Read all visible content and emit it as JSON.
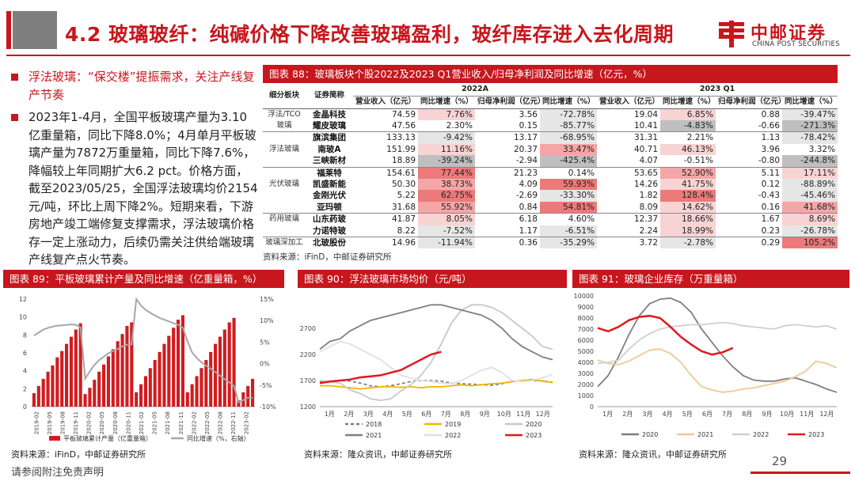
{
  "header": {
    "title": "4.2 玻璃玻纤：纯碱价格下降改善玻璃盈利，玻纤库存进入去化周期",
    "logo_cn": "中邮证券",
    "logo_en": "CHINA POST SECURITIES"
  },
  "bullets": [
    "浮法玻璃：“保交楼”提振需求，关注产线复产节奏",
    "2023年1-4月，全国平板玻璃产量为3.10亿重量箱，同比下降8.0%；4月单月平板玻璃产量为7872万重量箱，同比下降7.6%，降幅较上年同期扩大6.2 pct。价格方面，截至2023/05/25，全国浮法玻璃均价2154元/吨，环比上周下降2%。短期来看，下游房地产竣工端修复支撑需求，浮法玻璃价格存一定上涨动力，后续仍需关注供给端玻璃产线复产点火节奏。"
  ],
  "table88": {
    "title": "图表 88：玻璃板块个股2022及2023 Q1营业收入/归母净利润及同比增速（亿元，%）",
    "period_a": "2022A",
    "period_b": "2023 Q1",
    "col_group": "细分板块",
    "col_name": "证券简称",
    "col_rev": "营业收入（亿元）",
    "col_yoy": "同比增速（%）",
    "col_np": "归母净利润（亿元）",
    "source": "资料来源：iFinD，中邮证券研究所",
    "rows": [
      {
        "group": "浮法/TCO",
        "name": "金晶科技",
        "v": [
          "74.59",
          "7.76%",
          "3.56",
          "-72.78%",
          "19.04",
          "6.85%",
          "0.88",
          "-39.47%"
        ],
        "c": [
          "",
          "pos1",
          "",
          "neg1",
          "",
          "pos1",
          "",
          "neg1"
        ]
      },
      {
        "group": "玻璃",
        "name": "耀皮玻璃",
        "v": [
          "47.56",
          "2.30%",
          "0.15",
          "-85.77%",
          "10.41",
          "-4.83%",
          "-0.66",
          "-271.3%"
        ],
        "c": [
          "",
          "",
          "",
          "neg1",
          "",
          "neg2",
          "",
          "neg2"
        ]
      },
      {
        "group": "",
        "name": "旗滨集团",
        "v": [
          "133.13",
          "-9.42%",
          "13.17",
          "-68.95%",
          "31.31",
          "2.21%",
          "1.13",
          "-78.42%"
        ],
        "c": [
          "",
          "neg1",
          "",
          "neg1",
          "",
          "",
          "",
          "neg1"
        ]
      },
      {
        "group": "浮法玻璃",
        "name": "南玻A",
        "v": [
          "151.99",
          "11.16%",
          "20.37",
          "33.47%",
          "40.71",
          "46.13%",
          "3.96",
          "3.32%"
        ],
        "c": [
          "",
          "pos1",
          "",
          "pos2",
          "",
          "pos1",
          "",
          ""
        ]
      },
      {
        "group": "",
        "name": "三峡新材",
        "v": [
          "18.89",
          "-39.24%",
          "-2.94",
          "-425.4%",
          "4.07",
          "-0.51%",
          "-0.80",
          "-244.8%"
        ],
        "c": [
          "",
          "neg2",
          "",
          "neg2",
          "",
          "",
          "",
          "neg2"
        ]
      },
      {
        "group": "",
        "name": "福莱特",
        "v": [
          "154.61",
          "77.44%",
          "21.23",
          "0.14%",
          "53.65",
          "52.90%",
          "5.11",
          "17.11%"
        ],
        "c": [
          "",
          "pos3",
          "",
          "",
          "",
          "pos2",
          "",
          "pos1"
        ]
      },
      {
        "group": "光伏玻璃",
        "name": "凯盛新能",
        "v": [
          "50.30",
          "38.73%",
          "4.09",
          "59.93%",
          "14.26",
          "41.75%",
          "0.12",
          "-88.89%"
        ],
        "c": [
          "",
          "pos2",
          "",
          "pos3",
          "",
          "pos1",
          "",
          "neg1"
        ]
      },
      {
        "group": "",
        "name": "金刚光伏",
        "v": [
          "5.22",
          "62.75%",
          "-2.69",
          "-33.30%",
          "1.82",
          "128.4%",
          "-0.43",
          "-45.46%"
        ],
        "c": [
          "",
          "pos3",
          "",
          "neg1",
          "",
          "pos3",
          "",
          "neg1"
        ]
      },
      {
        "group": "",
        "name": "亚玛顿",
        "v": [
          "31.68",
          "55.92%",
          "0.84",
          "54.81%",
          "8.09",
          "14.62%",
          "0.16",
          "41.68%"
        ],
        "c": [
          "",
          "pos2",
          "",
          "pos3",
          "",
          "pos1",
          "",
          "pos2"
        ]
      },
      {
        "group": "药用玻璃",
        "name": "山东药玻",
        "v": [
          "41.87",
          "8.05%",
          "6.18",
          "4.60%",
          "12.37",
          "18.66%",
          "1.67",
          "8.69%"
        ],
        "c": [
          "",
          "pos1",
          "",
          "",
          "",
          "pos1",
          "",
          "pos1"
        ]
      },
      {
        "group": "",
        "name": "力诺特玻",
        "v": [
          "8.22",
          "-7.52%",
          "1.17",
          "-6.51%",
          "2.24",
          "18.99%",
          "0.23",
          "-26.78%"
        ],
        "c": [
          "",
          "neg1",
          "",
          "neg1",
          "",
          "pos1",
          "",
          "neg1"
        ]
      },
      {
        "group": "玻璃深加工",
        "name": "北玻股份",
        "v": [
          "14.96",
          "-11.94%",
          "0.36",
          "-35.29%",
          "3.72",
          "-2.78%",
          "0.29",
          "105.2%"
        ],
        "c": [
          "",
          "neg1",
          "",
          "neg1",
          "",
          "neg1",
          "",
          "pos3"
        ]
      }
    ]
  },
  "fig89": {
    "title": "图表 89：平板玻璃累计产量及同比增速（亿重量箱，%）",
    "source": "资料来源：iFinD，中邮证券研究所",
    "chart_data": {
      "type": "bar",
      "y_left_ticks": [
        "0",
        "2",
        "4",
        "6",
        "8",
        "10",
        "12"
      ],
      "y_right_ticks": [
        "-10%",
        "-5%",
        "0%",
        "5%",
        "10%",
        "15%"
      ],
      "x_ticks": [
        "2019-02",
        "2019-05",
        "2019-08",
        "2019-11",
        "2020-02",
        "2020-05",
        "2020-08",
        "2020-11",
        "2021-02",
        "2021-05",
        "2021-08",
        "2021-11",
        "2022-02",
        "2022-05",
        "2022-08",
        "2022-11",
        "2023-02"
      ],
      "bar_values": [
        1.5,
        2.3,
        3.1,
        3.9,
        4.6,
        5.5,
        6.2,
        7.0,
        7.8,
        8.6,
        9.3,
        1.4,
        2.1,
        3.0,
        3.9,
        4.7,
        5.6,
        6.4,
        7.3,
        8.1,
        9.0,
        9.4,
        1.6,
        2.5,
        3.4,
        4.3,
        5.2,
        6.1,
        7.0,
        7.9,
        8.8,
        9.7,
        10.2,
        1.6,
        2.5,
        3.4,
        4.3,
        5.2,
        6.1,
        7.0,
        7.8,
        8.6,
        9.4,
        9.9,
        0.7,
        1.6,
        2.3,
        3.1
      ],
      "line_values": [
        6.5,
        7.2,
        7.9,
        8.3,
        8.6,
        8.8,
        8.9,
        9.0,
        9.1,
        9.0,
        8.4,
        -3.5,
        -1.8,
        -0.3,
        0.8,
        1.6,
        2.4,
        2.9,
        3.4,
        4.0,
        4.4,
        4.5,
        15.0,
        13.5,
        12.5,
        11.8,
        11.2,
        10.6,
        10.2,
        9.8,
        9.4,
        9.0,
        8.4,
        5.2,
        2.6,
        1.3,
        0.3,
        -0.5,
        -1.2,
        -2.0,
        -2.8,
        -3.6,
        -4.4,
        -5.2,
        -9.0,
        -8.5,
        -7.9,
        -8.0
      ],
      "left_range": [
        0,
        12
      ],
      "right_range": [
        -10,
        15
      ],
      "legend": [
        "平板玻璃累计产量（亿重量箱）",
        "同比增速（%，右轴）"
      ],
      "colors": {
        "bar": "#d01c1f",
        "line": "#a6a6a6"
      }
    }
  },
  "fig90": {
    "title": "图表 90：浮法玻璃市场均价（元/吨）",
    "source": "资料来源：隆众资讯，中邮证券研究所",
    "chart_data": {
      "type": "line",
      "x_ticks": [
        "1月",
        "2月",
        "3月",
        "4月",
        "5月",
        "6月",
        "7月",
        "8月",
        "9月",
        "10月",
        "11月",
        "12月"
      ],
      "y_ticks": [
        "1200",
        "1700",
        "2200",
        "2700"
      ],
      "y_range": [
        1200,
        3200
      ],
      "series": [
        {
          "name": "2018",
          "color": "#808080",
          "dash": true,
          "values": [
            1670,
            1680,
            1700,
            1690,
            1650,
            1600,
            1580,
            1600,
            1640,
            1680,
            1700,
            1700,
            1690,
            1650,
            1640,
            1630,
            1620,
            1610,
            1640,
            1680,
            1700,
            1700,
            1690,
            1670
          ]
        },
        {
          "name": "2019",
          "color": "#f4b400",
          "values": [
            1600,
            1600,
            1580,
            1560,
            1540,
            1560,
            1580,
            1580,
            1570,
            1580,
            1560,
            1580,
            1580,
            1600,
            1620,
            1600,
            1620,
            1640,
            1650,
            1680,
            1700,
            1720,
            1690,
            1660
          ]
        },
        {
          "name": "2020",
          "color": "#c8c8c8",
          "values": [
            1700,
            1680,
            1650,
            1520,
            1450,
            1350,
            1320,
            1350,
            1500,
            1620,
            1800,
            2050,
            2400,
            2800,
            3050,
            3150,
            3150,
            3100,
            3000,
            2850,
            2700,
            2550,
            2350,
            2300
          ]
        },
        {
          "name": "2021",
          "color": "#7f7f7f",
          "values": [
            2300,
            2450,
            2500,
            2650,
            2750,
            2850,
            2900,
            2950,
            3000,
            3050,
            3100,
            3150,
            3150,
            3100,
            3050,
            3000,
            2950,
            2850,
            2700,
            2500,
            2350,
            2250,
            2150,
            2100
          ]
        },
        {
          "name": "2022",
          "color": "#e0e0e0",
          "values": [
            2250,
            2350,
            2450,
            2400,
            2300,
            2200,
            2100,
            1950,
            1800,
            1750,
            1700,
            1680,
            1650,
            1640,
            1700,
            1800,
            1900,
            1950,
            1850,
            1700,
            1680,
            1700,
            1750,
            1820
          ]
        },
        {
          "name": "2023",
          "color": "#e0191f",
          "values": [
            1650,
            1680,
            1700,
            1720,
            1760,
            1780,
            1800,
            1850,
            1900,
            2000,
            2100,
            2200,
            2250
          ]
        }
      ]
    }
  },
  "fig91": {
    "title": "图表 91：玻璃企业库存（万重量箱）",
    "source": "资料来源：隆众资讯，中邮证券研究所",
    "chart_data": {
      "type": "line",
      "x_ticks": [
        "1月",
        "2月",
        "3月",
        "4月",
        "5月",
        "6月",
        "7月",
        "8月",
        "9月",
        "10月",
        "11月",
        "12月"
      ],
      "y_ticks": [
        "0",
        "1000",
        "2000",
        "3000",
        "4000",
        "5000",
        "6000",
        "7000",
        "8000",
        "9000",
        "10000"
      ],
      "y_range": [
        0,
        10000
      ],
      "series": [
        {
          "name": "2020",
          "color": "#7f7f7f",
          "values": [
            1800,
            2800,
            4500,
            6500,
            8200,
            9300,
            9700,
            9800,
            9400,
            8500,
            7000,
            5800,
            4600,
            3600,
            2800,
            2400,
            2300,
            2300,
            2500,
            2600,
            2300,
            2000,
            1600,
            1300
          ]
        },
        {
          "name": "2021",
          "color": "#f0c896",
          "values": [
            4200,
            3900,
            3800,
            4100,
            4600,
            5100,
            5200,
            4800,
            4000,
            2800,
            1800,
            1500,
            1300,
            1400,
            1600,
            1700,
            1900,
            2100,
            2300,
            2700,
            3200,
            4100,
            3900,
            3500
          ]
        },
        {
          "name": "2022",
          "color": "#d0d0d0",
          "values": [
            3900,
            4000,
            4200,
            5200,
            6000,
            6600,
            7000,
            7200,
            7300,
            7400,
            7400,
            7500,
            7600,
            7500,
            7300,
            7200,
            7100,
            7000,
            7300,
            7400,
            7300,
            7200,
            7300,
            7000
          ]
        },
        {
          "name": "2023",
          "color": "#e0191f",
          "values": [
            7100,
            6800,
            7200,
            7800,
            8100,
            8200,
            8000,
            7200,
            6300,
            5600,
            5000,
            4700,
            4900,
            5300
          ]
        }
      ]
    }
  },
  "footer": {
    "note": "请参阅附注免责声明",
    "page": "29"
  }
}
